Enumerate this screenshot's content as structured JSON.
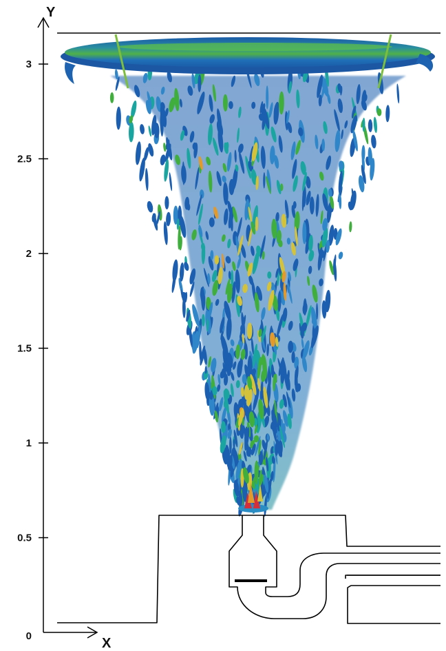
{
  "axes": {
    "y_title": "Y",
    "x_title": "X",
    "y_ticks": [
      "0",
      "0.5",
      "1",
      "1.5",
      "2",
      "2.5",
      "3"
    ],
    "y_range": [
      0,
      3.2
    ]
  },
  "colors": {
    "outline": "#000000",
    "blue": "#1c5fb0",
    "blue_light": "#2f86c9",
    "teal": "#1aa5a0",
    "green": "#3fae3c",
    "yellow": "#d4c23a",
    "orange": "#e49a2a",
    "red": "#d62f3a"
  }
}
